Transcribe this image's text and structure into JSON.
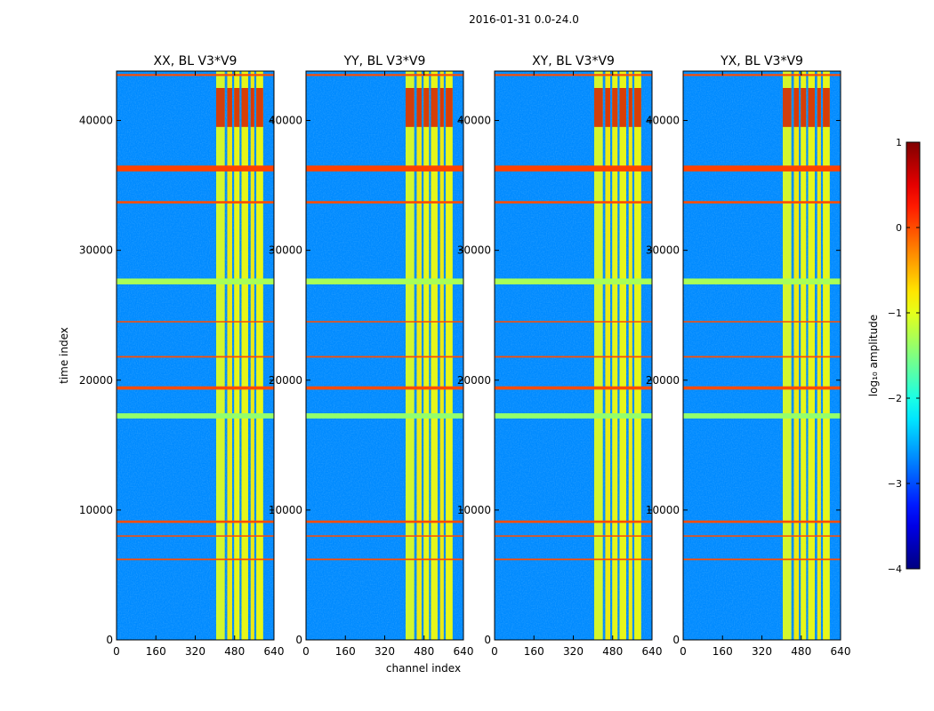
{
  "figure": {
    "suptitle": "2016-01-31 0.0-24.0",
    "shared_xlabel": "channel index",
    "shared_ylabel": "time index"
  },
  "chart_data": {
    "type": "heatmap",
    "colormap": "jet",
    "x_range": [
      0,
      640
    ],
    "y_range": [
      0,
      43800
    ],
    "x_ticks": [
      0,
      160,
      320,
      480,
      640
    ],
    "x_tick_labels": [
      "0",
      "160",
      "320",
      "480",
      "640"
    ],
    "y_ticks": [
      0,
      10000,
      20000,
      30000,
      40000
    ],
    "y_tick_labels": [
      "0",
      "10000",
      "20000",
      "30000",
      "40000"
    ],
    "panels": [
      {
        "title": "XX, BL V3*V9",
        "ylabel": "time index",
        "xlabel": "",
        "polarization": "XX"
      },
      {
        "title": "YY, BL V3*V9",
        "ylabel": "",
        "xlabel": "channel index",
        "polarization": "YY"
      },
      {
        "title": "XY, BL V3*V9",
        "ylabel": "",
        "xlabel": "",
        "polarization": "XY"
      },
      {
        "title": "YX, BL V3*V9",
        "ylabel": "",
        "xlabel": "",
        "polarization": "YX"
      }
    ],
    "colorbar": {
      "label": "log₁₀ amplitude",
      "range": [
        -4,
        1
      ],
      "ticks": [
        1,
        0,
        -1,
        -2,
        -3,
        -4
      ],
      "tick_labels": [
        "1",
        "0",
        "−1",
        "−2",
        "−3",
        "−4"
      ]
    },
    "background_log_amplitude": -2.7,
    "rfi_channel_bands": [
      {
        "start": 405,
        "end": 440,
        "level": -1.0
      },
      {
        "start": 450,
        "end": 470,
        "level": -0.8
      },
      {
        "start": 478,
        "end": 500,
        "level": -0.9
      },
      {
        "start": 508,
        "end": 535,
        "level": -0.9
      },
      {
        "start": 545,
        "end": 560,
        "level": -0.8
      },
      {
        "start": 568,
        "end": 596,
        "level": -0.9
      }
    ],
    "flagged_time_rows": [
      {
        "time": 36300,
        "width": 450,
        "level": 0.05
      },
      {
        "time": 27600,
        "width": 450,
        "level": -1.3
      },
      {
        "time": 19400,
        "width": 250,
        "level": 0.0
      },
      {
        "time": 17250,
        "width": 400,
        "level": -1.4
      },
      {
        "time": 33700,
        "width": 180,
        "level": 0.0
      },
      {
        "time": 9100,
        "width": 180,
        "level": 0.0
      },
      {
        "time": 43500,
        "width": 150,
        "level": 0.0
      },
      {
        "time": 6200,
        "width": 120,
        "level": 0.0
      },
      {
        "time": 21800,
        "width": 120,
        "level": 0.0
      },
      {
        "time": 8000,
        "width": 80,
        "level": 0.0
      },
      {
        "time": 24500,
        "width": 80,
        "level": 0.0
      }
    ],
    "high_amplitude_block": {
      "time_start": 39500,
      "time_end": 42500,
      "level": 0.6
    }
  }
}
